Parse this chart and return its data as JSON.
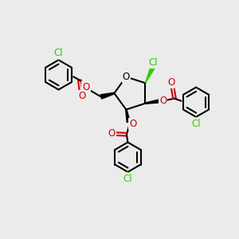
{
  "bg_color": "#ebebeb",
  "bond_color": "#000000",
  "cl_color": "#33cc00",
  "o_color": "#cc0000",
  "lw": 1.5,
  "fig_size": [
    3.0,
    3.0
  ],
  "dpi": 100,
  "xlim": [
    0,
    10
  ],
  "ylim": [
    0,
    10
  ],
  "font_size": 8.5
}
